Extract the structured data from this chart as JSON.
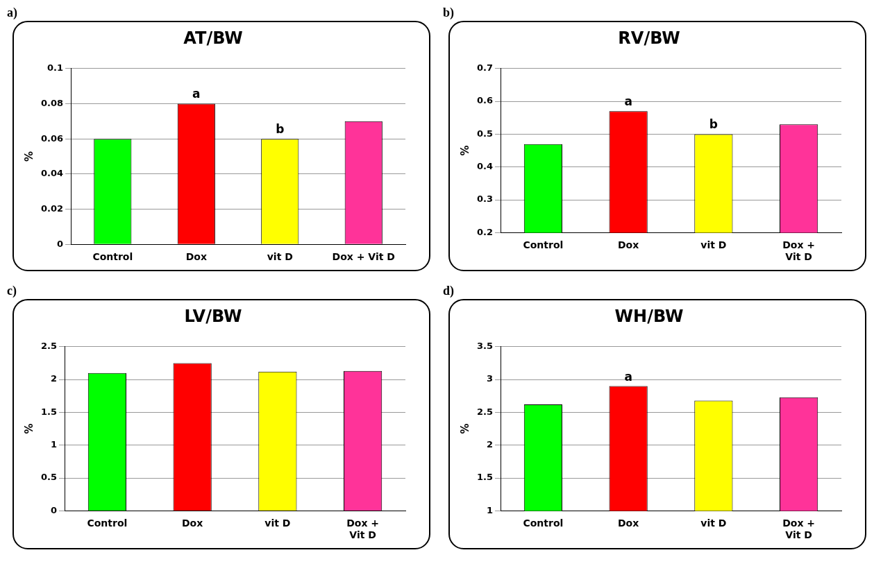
{
  "chart_data": [
    {
      "type": "bar",
      "title": "AT/BW",
      "ylabel": "%",
      "categories": [
        "Control",
        "Dox",
        "vit D",
        "Dox + Vit D"
      ],
      "values": [
        0.06,
        0.08,
        0.06,
        0.07
      ],
      "colors": [
        "#00ff00",
        "#ff0000",
        "#ffff00",
        "#ff3399"
      ],
      "ylim": [
        0,
        0.1
      ],
      "yticks": [
        0,
        0.02,
        0.04,
        0.06,
        0.08,
        0.1
      ],
      "grid": "y",
      "legend": false,
      "annotations": [
        "a)",
        {
          "text": "a",
          "x": "Dox",
          "y": 0.08
        },
        {
          "text": "b",
          "x": "vit D",
          "y": 0.06
        }
      ]
    },
    {
      "type": "bar",
      "title": "RV/BW",
      "ylabel": "%",
      "categories": [
        "Control",
        "Dox",
        "vit D",
        "Dox +\nVit D"
      ],
      "values": [
        0.47,
        0.57,
        0.5,
        0.53
      ],
      "colors": [
        "#00ff00",
        "#ff0000",
        "#ffff00",
        "#ff3399"
      ],
      "ylim": [
        0.2,
        0.7
      ],
      "yticks": [
        0.2,
        0.3,
        0.4,
        0.5,
        0.6,
        0.7
      ],
      "grid": "y",
      "legend": false,
      "annotations": [
        "b)",
        {
          "text": "a",
          "x": "Dox",
          "y": 0.57
        },
        {
          "text": "b",
          "x": "vit D",
          "y": 0.5
        }
      ]
    },
    {
      "type": "bar",
      "title": "LV/BW",
      "ylabel": "%",
      "categories": [
        "Control",
        "Dox",
        "vit D",
        "Dox +\nVit D"
      ],
      "values": [
        2.1,
        2.25,
        2.12,
        2.13
      ],
      "colors": [
        "#00ff00",
        "#ff0000",
        "#ffff00",
        "#ff3399"
      ],
      "ylim": [
        0,
        2.5
      ],
      "yticks": [
        0,
        0.5,
        1,
        1.5,
        2,
        2.5
      ],
      "grid": "y",
      "legend": false,
      "annotations": [
        "c)"
      ]
    },
    {
      "type": "bar",
      "title": "WH/BW",
      "ylabel": "%",
      "categories": [
        "Control",
        "Dox",
        "vit D",
        "Dox +\nVit D"
      ],
      "values": [
        2.62,
        2.9,
        2.68,
        2.73
      ],
      "colors": [
        "#00ff00",
        "#ff0000",
        "#ffff00",
        "#ff3399"
      ],
      "ylim": [
        1,
        3.5
      ],
      "yticks": [
        1,
        1.5,
        2,
        2.5,
        3,
        3.5
      ],
      "grid": "y",
      "legend": false,
      "annotations": [
        "d)",
        {
          "text": "a",
          "x": "Dox",
          "y": 2.9
        }
      ]
    }
  ]
}
